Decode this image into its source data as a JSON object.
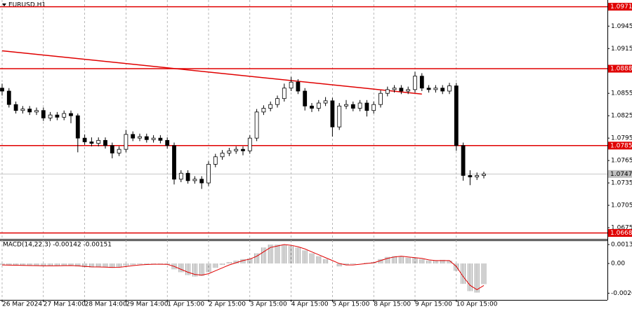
{
  "chart_data": {
    "type": "candlestick",
    "title": "EURUSD,H1",
    "categories": [
      "26 Mar 2024",
      null,
      null,
      null,
      null,
      null,
      "27 Mar 14:00",
      null,
      null,
      null,
      null,
      null,
      "28 Mar 14:00",
      null,
      null,
      null,
      null,
      null,
      "29 Mar 14:00",
      null,
      null,
      null,
      null,
      null,
      "1 Apr 15:00",
      null,
      null,
      null,
      null,
      null,
      "2 Apr 15:00",
      null,
      null,
      null,
      null,
      null,
      "3 Apr 15:00",
      null,
      null,
      null,
      null,
      null,
      "4 Apr 15:00",
      null,
      null,
      null,
      null,
      null,
      "5 Apr 15:00",
      null,
      null,
      null,
      null,
      null,
      "8 Apr 15:00",
      null,
      null,
      null,
      null,
      null,
      "9 Apr 15:00",
      null,
      null,
      null,
      null,
      null,
      "10 Apr 15:00",
      null,
      null,
      null,
      null
    ],
    "candles": [
      [
        1.0862,
        1.0868,
        1.0852,
        1.0858
      ],
      [
        1.0858,
        1.0862,
        1.0836,
        1.084
      ],
      [
        1.084,
        1.0844,
        1.0828,
        1.0832
      ],
      [
        1.0832,
        1.0838,
        1.0828,
        1.0834
      ],
      [
        1.0834,
        1.0838,
        1.0826,
        1.083
      ],
      [
        1.083,
        1.0836,
        1.0826,
        1.0832
      ],
      [
        1.0832,
        1.0836,
        1.0818,
        1.0822
      ],
      [
        1.0822,
        1.083,
        1.0818,
        1.0826
      ],
      [
        1.0826,
        1.083,
        1.0819,
        1.0823
      ],
      [
        1.0823,
        1.0832,
        1.0819,
        1.0828
      ],
      [
        1.0828,
        1.0832,
        1.0815,
        1.0825
      ],
      [
        1.0825,
        1.0828,
        1.0776,
        1.0795
      ],
      [
        1.0795,
        1.08,
        1.0786,
        1.079
      ],
      [
        1.079,
        1.0796,
        1.0784,
        1.0788
      ],
      [
        1.0788,
        1.0796,
        1.0784,
        1.0792
      ],
      [
        1.0792,
        1.0796,
        1.0781,
        1.0785
      ],
      [
        1.0785,
        1.0789,
        1.0768,
        1.0775
      ],
      [
        1.0775,
        1.0784,
        1.0771,
        1.078
      ],
      [
        1.078,
        1.0806,
        1.0776,
        1.08
      ],
      [
        1.08,
        1.0804,
        1.0791,
        1.0795
      ],
      [
        1.0795,
        1.0801,
        1.0791,
        1.0797
      ],
      [
        1.0797,
        1.0801,
        1.0789,
        1.0793
      ],
      [
        1.0793,
        1.0799,
        1.0789,
        1.0795
      ],
      [
        1.0795,
        1.0799,
        1.0788,
        1.0792
      ],
      [
        1.0792,
        1.0796,
        1.0781,
        1.0785
      ],
      [
        1.0785,
        1.0789,
        1.0733,
        1.074
      ],
      [
        1.074,
        1.0752,
        1.0736,
        1.0748
      ],
      [
        1.0748,
        1.0752,
        1.0734,
        1.0738
      ],
      [
        1.0738,
        1.0744,
        1.0734,
        1.074
      ],
      [
        1.074,
        1.0744,
        1.0727,
        1.0735
      ],
      [
        1.0735,
        1.0764,
        1.0731,
        1.076
      ],
      [
        1.076,
        1.0774,
        1.0756,
        1.077
      ],
      [
        1.077,
        1.0779,
        1.0766,
        1.0775
      ],
      [
        1.0775,
        1.0782,
        1.0771,
        1.0778
      ],
      [
        1.0778,
        1.0784,
        1.0774,
        1.078
      ],
      [
        1.078,
        1.0784,
        1.0772,
        1.0778
      ],
      [
        1.0778,
        1.0799,
        1.0774,
        1.0795
      ],
      [
        1.0795,
        1.0834,
        1.0791,
        1.083
      ],
      [
        1.083,
        1.0839,
        1.0826,
        1.0835
      ],
      [
        1.0835,
        1.0844,
        1.0831,
        1.084
      ],
      [
        1.084,
        1.0852,
        1.0836,
        1.0848
      ],
      [
        1.0848,
        1.0868,
        1.0844,
        1.0862
      ],
      [
        1.0862,
        1.0877,
        1.0858,
        1.087
      ],
      [
        1.087,
        1.0874,
        1.0854,
        1.0858
      ],
      [
        1.0858,
        1.0862,
        1.0832,
        1.0838
      ],
      [
        1.0838,
        1.0842,
        1.083,
        1.0835
      ],
      [
        1.0835,
        1.0846,
        1.0831,
        1.0842
      ],
      [
        1.0842,
        1.085,
        1.0838,
        1.0845
      ],
      [
        1.0845,
        1.0849,
        1.0797,
        1.081
      ],
      [
        1.081,
        1.0842,
        1.0806,
        1.0838
      ],
      [
        1.0838,
        1.0846,
        1.0834,
        1.084
      ],
      [
        1.084,
        1.0844,
        1.0831,
        1.0835
      ],
      [
        1.0835,
        1.0846,
        1.0831,
        1.0842
      ],
      [
        1.0842,
        1.0846,
        1.0824,
        1.0832
      ],
      [
        1.0832,
        1.0844,
        1.0828,
        1.084
      ],
      [
        1.084,
        1.0859,
        1.0836,
        1.0855
      ],
      [
        1.0855,
        1.0864,
        1.0851,
        1.086
      ],
      [
        1.086,
        1.0866,
        1.0856,
        1.0862
      ],
      [
        1.0862,
        1.0866,
        1.0854,
        1.0858
      ],
      [
        1.0858,
        1.0864,
        1.0854,
        1.086
      ],
      [
        1.086,
        1.0884,
        1.0856,
        1.0878
      ],
      [
        1.0878,
        1.0882,
        1.0858,
        1.0862
      ],
      [
        1.0862,
        1.0866,
        1.0856,
        1.086
      ],
      [
        1.086,
        1.0866,
        1.0856,
        1.0862
      ],
      [
        1.0862,
        1.0866,
        1.0854,
        1.0858
      ],
      [
        1.0858,
        1.0869,
        1.0854,
        1.0865
      ],
      [
        1.0865,
        1.0869,
        1.0778,
        1.0785
      ],
      [
        1.0785,
        1.0789,
        1.0738,
        1.0745
      ],
      [
        1.0745,
        1.0752,
        1.0732,
        1.0743
      ],
      [
        1.0743,
        1.0749,
        1.0739,
        1.0745
      ],
      [
        1.0745,
        1.075,
        1.0741,
        1.0747
      ]
    ],
    "ylim": [
      1.066,
      1.098
    ],
    "yticks": [
      1.0675,
      1.0705,
      1.0735,
      1.0765,
      1.0795,
      1.0825,
      1.0855,
      1.0885,
      1.0915,
      1.0945
    ],
    "levels": [
      1.0971,
      1.0888,
      1.0785,
      1.0668
    ],
    "level_color": "#e00000",
    "trendline": [
      [
        0,
        1.0912
      ],
      [
        61,
        1.0854
      ]
    ],
    "macd": {
      "title": "MACD(14,22,3) -0.00142 -0.00151",
      "ylim": [
        -0.0025,
        0.00159
      ],
      "yticks": [
        0.0013,
        {
          "value": 0,
          "label": "0.00"
        },
        -0.00204
      ],
      "histogram": [
        -0.0001,
        -0.00012,
        -0.00014,
        -0.00015,
        -0.00015,
        -0.00016,
        -0.00018,
        -0.00017,
        -0.00016,
        -0.00014,
        -0.00012,
        -0.0002,
        -0.00025,
        -0.00027,
        -0.00025,
        -0.00026,
        -0.0003,
        -0.00025,
        -0.00015,
        -0.0001,
        -6e-05,
        -5e-05,
        -4e-05,
        -5e-05,
        -8e-05,
        -0.0004,
        -0.0006,
        -0.0008,
        -0.0009,
        -0.00085,
        -0.0006,
        -0.0003,
        -0.0001,
        0.0001,
        0.0002,
        0.0003,
        0.00035,
        0.0007,
        0.0011,
        0.0013,
        0.0013,
        0.0013,
        0.0012,
        0.0011,
        0.0009,
        0.0007,
        0.0005,
        0.0003,
        0,
        -0.0002,
        -0.0001,
        -5e-05,
        0,
        5e-05,
        0.0001,
        0.0003,
        0.00045,
        0.0005,
        0.0005,
        0.0004,
        0.0004,
        0.0003,
        0.0002,
        0.0002,
        0.00025,
        0.0002,
        -0.0005,
        -0.0014,
        -0.0019,
        -0.002,
        -0.00142
      ],
      "signal": [
        -0.0001,
        -0.00011,
        -0.00012,
        -0.00013,
        -0.00014,
        -0.00015,
        -0.00016,
        -0.00016,
        -0.00016,
        -0.00015,
        -0.00014,
        -0.00016,
        -0.0002,
        -0.00023,
        -0.00024,
        -0.00025,
        -0.00027,
        -0.00026,
        -0.00021,
        -0.00015,
        -0.0001,
        -7e-05,
        -5e-05,
        -5e-05,
        -6e-05,
        -0.0002,
        -0.0004,
        -0.0006,
        -0.00075,
        -0.0008,
        -0.0007,
        -0.0005,
        -0.0003,
        -0.0001,
        5e-05,
        0.0002,
        0.0003,
        0.0005,
        0.0008,
        0.0011,
        0.0012,
        0.0013,
        0.00125,
        0.00115,
        0.001,
        0.0008,
        0.0006,
        0.0004,
        0.0002,
        0,
        -0.0001,
        -0.0001,
        -5e-05,
        0,
        5e-05,
        0.0002,
        0.00035,
        0.00045,
        0.0005,
        0.00045,
        0.0004,
        0.00035,
        0.00025,
        0.0002,
        0.0002,
        0.0002,
        -0.0002,
        -0.0009,
        -0.0015,
        -0.0018,
        -0.00151
      ],
      "histogram_color": "#a0a0a0",
      "signal_color": "#e00000"
    },
    "grid": true
  }
}
